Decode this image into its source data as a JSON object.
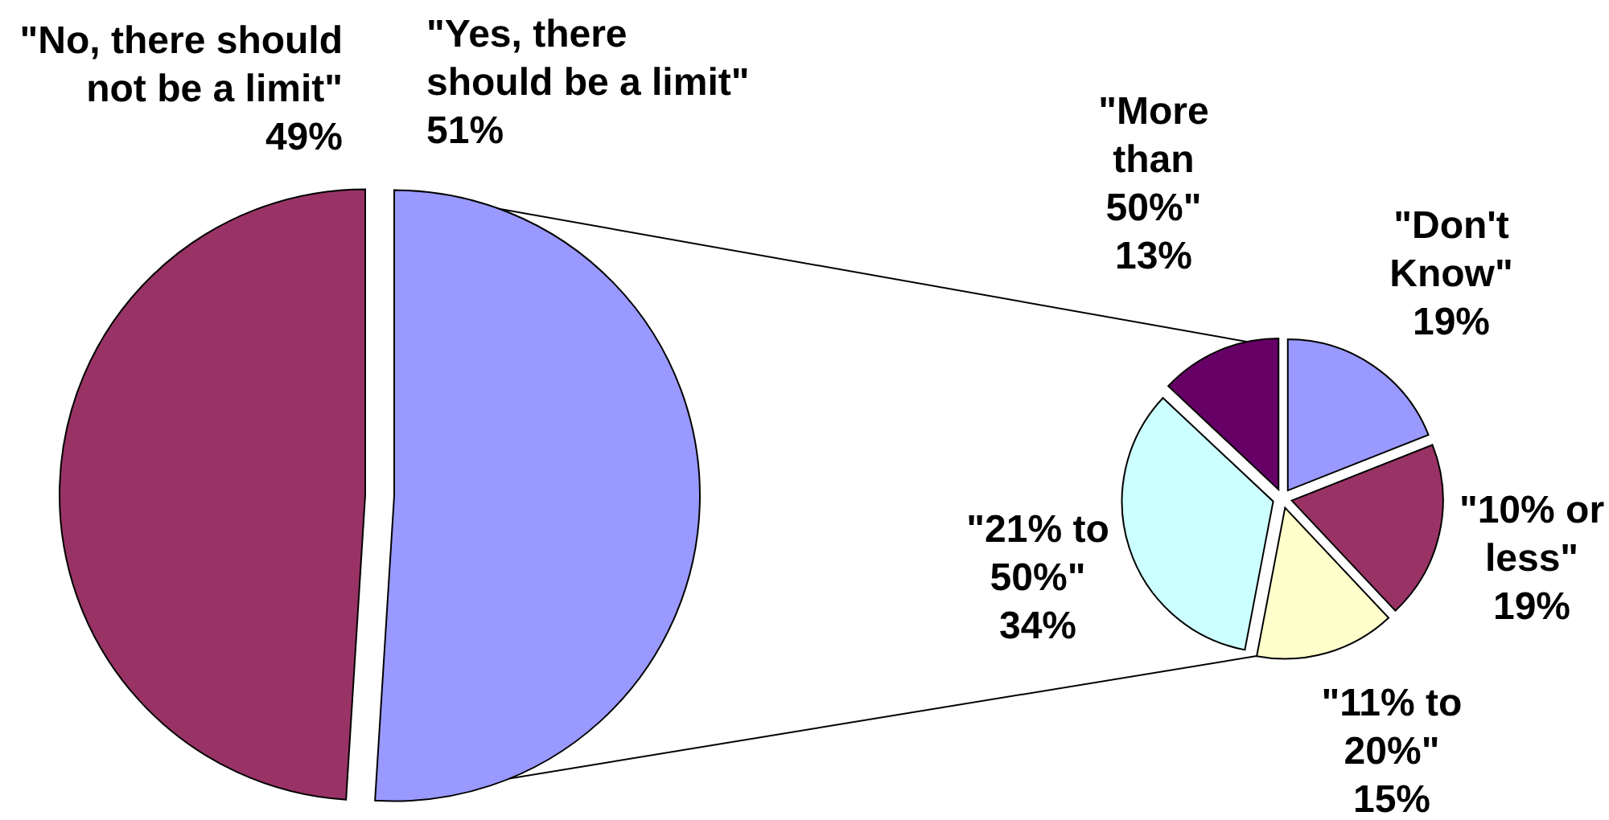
{
  "chart_data": [
    {
      "type": "pie",
      "categories": [
        "\"Yes, there should be a limit\"",
        "\"No, there should not be a limit\""
      ],
      "values": [
        51,
        49
      ],
      "colors": [
        "#9999ff",
        "#993366"
      ],
      "value_labels": [
        "51%",
        "49%"
      ]
    },
    {
      "type": "pie",
      "categories": [
        "\"Don't Know\"",
        "\"10% or less\"",
        "\"11% to 20%\"",
        "\"21% to 50%\"",
        "\"More than 50%\""
      ],
      "values": [
        19,
        19,
        15,
        34,
        13
      ],
      "colors": [
        "#9999ff",
        "#993366",
        "#ffffcc",
        "#ccffff",
        "#660066"
      ],
      "value_labels": [
        "19%",
        "19%",
        "15%",
        "34%",
        "13%"
      ]
    }
  ]
}
